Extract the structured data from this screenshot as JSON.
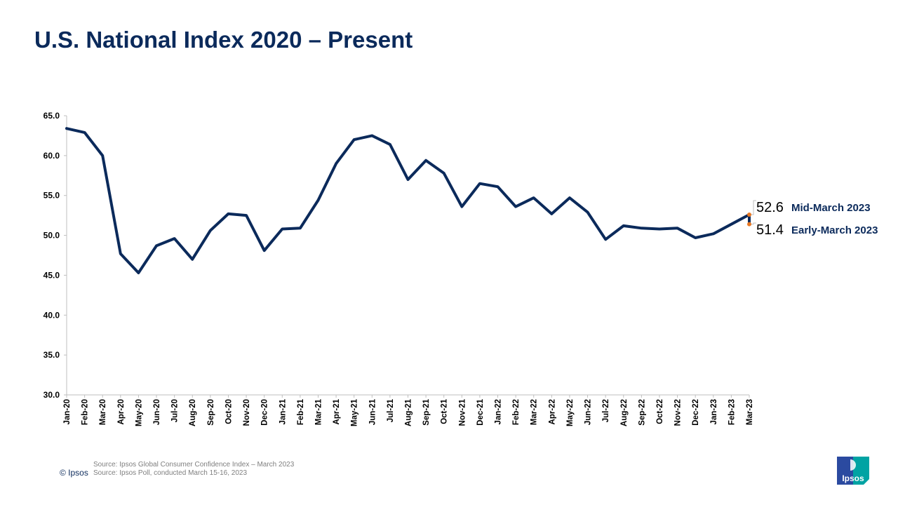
{
  "title": "U.S. National Index 2020 – Present",
  "chart_data": {
    "type": "line",
    "title": "",
    "xlabel": "",
    "ylabel": "",
    "ylim": [
      30,
      65
    ],
    "yticks": [
      "65.0",
      "60.0",
      "55.0",
      "50.0",
      "45.0",
      "40.0",
      "35.0",
      "30.0"
    ],
    "grid": false,
    "categories": [
      "Jan-20",
      "Feb-20",
      "Mar-20",
      "Apr-20",
      "May-20",
      "Jun-20",
      "Jul-20",
      "Aug-20",
      "Sep-20",
      "Oct-20",
      "Nov-20",
      "Dec-20",
      "Jan-21",
      "Feb-21",
      "Mar-21",
      "Apr-21",
      "May-21",
      "Jun-21",
      "Jul-21",
      "Aug-21",
      "Sep-21",
      "Oct-21",
      "Nov-21",
      "Dec-21",
      "Jan-22",
      "Feb-22",
      "Mar-22",
      "Apr-22",
      "May-22",
      "Jun-22",
      "Jul-22",
      "Aug-22",
      "Sep-22",
      "Oct-22",
      "Nov-22",
      "Dec-22",
      "Jan-23",
      "Feb-23",
      "Mar-23"
    ],
    "series": [
      {
        "color": "#0b2a5b",
        "values": [
          63.4,
          62.9,
          60.0,
          47.7,
          45.3,
          48.7,
          49.6,
          47.0,
          50.6,
          52.7,
          52.5,
          48.1,
          50.8,
          50.9,
          54.4,
          59.0,
          62.0,
          62.5,
          61.4,
          57.0,
          59.4,
          57.8,
          53.6,
          56.5,
          56.1,
          53.6,
          54.7,
          52.7,
          54.7,
          52.9,
          49.5,
          51.2,
          50.9,
          50.8,
          50.9,
          49.7,
          50.2,
          51.4,
          52.6
        ]
      }
    ],
    "callouts": [
      {
        "value": "52.6",
        "label": "Mid-March 2023",
        "y": 52.6,
        "marker_color": "#e87722"
      },
      {
        "value": "51.4",
        "label": "Early-March 2023",
        "y": 51.4,
        "marker_color": "#e87722"
      }
    ]
  },
  "footer": {
    "copyright": "© Ipsos",
    "source1": "Source: Ipsos Global Consumer Confidence Index – March 2023",
    "source2": "Source: Ipsos Poll, conducted March 15-16, 2023"
  },
  "logo": {
    "text": "Ipsos",
    "colors": [
      "#2b4aa0",
      "#00a3a3"
    ]
  }
}
